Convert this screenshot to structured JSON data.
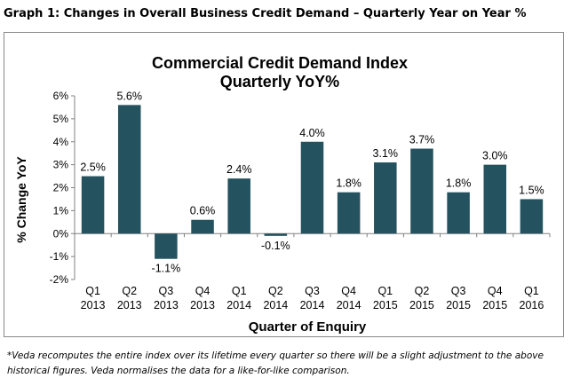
{
  "caption": "Graph 1: Changes in Overall Business Credit Demand – Quarterly Year on Year %",
  "footnote": "*Veda recomputes the entire index over its lifetime every quarter so there will be a slight adjustment to the above historical figures. Veda normalises the data for a like-for-like comparison.",
  "colors": {
    "bar": "#24525e",
    "axis": "#808080",
    "text": "#000000"
  },
  "chart_data": {
    "type": "bar",
    "title": "Commercial Credit Demand Index",
    "subtitle": "Quarterly YoY%",
    "xlabel": "Quarter of Enquiry",
    "ylabel": "% Change YoY",
    "ylim": [
      -2,
      6
    ],
    "yticks": [
      "-2%",
      "-1%",
      "0%",
      "1%",
      "2%",
      "3%",
      "4%",
      "5%",
      "6%"
    ],
    "grid": false,
    "legend": "none",
    "categories": [
      [
        "Q1",
        "2013"
      ],
      [
        "Q2",
        "2013"
      ],
      [
        "Q3",
        "2013"
      ],
      [
        "Q4",
        "2013"
      ],
      [
        "Q1",
        "2014"
      ],
      [
        "Q2",
        "2014"
      ],
      [
        "Q3",
        "2014"
      ],
      [
        "Q4",
        "2014"
      ],
      [
        "Q1",
        "2015"
      ],
      [
        "Q2",
        "2015"
      ],
      [
        "Q3",
        "2015"
      ],
      [
        "Q4",
        "2015"
      ],
      [
        "Q1",
        "2016"
      ]
    ],
    "values": [
      2.5,
      5.6,
      -1.1,
      0.6,
      2.4,
      -0.1,
      4.0,
      1.8,
      3.1,
      3.7,
      1.8,
      3.0,
      1.5
    ],
    "data_labels": [
      "2.5%",
      "5.6%",
      "-1.1%",
      "0.6%",
      "2.4%",
      "-0.1%",
      "4.0%",
      "1.8%",
      "3.1%",
      "3.7%",
      "1.8%",
      "3.0%",
      "1.5%"
    ]
  }
}
